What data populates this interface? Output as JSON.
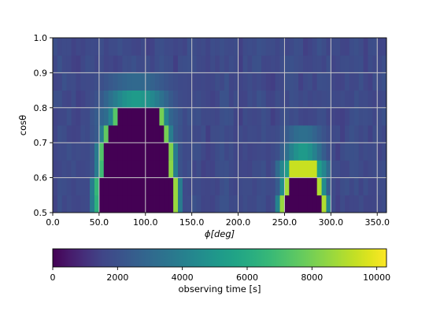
{
  "chart_data": {
    "type": "heatmap",
    "title": "",
    "xlabel": "ϕ[deg]",
    "ylabel": "cosθ",
    "xlim": [
      0,
      360
    ],
    "ylim": [
      0.5,
      1.0
    ],
    "x_ticks": [
      0,
      50,
      100,
      150,
      200,
      250,
      300,
      350
    ],
    "x_tick_labels": [
      "0.0",
      "50.0",
      "100.0",
      "150.0",
      "200.0",
      "250.0",
      "300.0",
      "350.0"
    ],
    "y_ticks": [
      0.5,
      0.6,
      0.7,
      0.8,
      0.9,
      1.0
    ],
    "y_tick_labels": [
      "0.5",
      "0.6",
      "0.7",
      "0.8",
      "0.9",
      "1.0"
    ],
    "grid": true,
    "cells": {
      "phi_step_deg": 5,
      "cos_theta_step": 0.05,
      "base_value_s": 1700,
      "lobes": [
        {
          "phi_range_deg": [
            45,
            135
          ],
          "rows": [
            {
              "cos_theta": [
                0.5,
                0.55
              ],
              "zero_phi_deg": [
                50,
                130
              ],
              "edge_values_s": [
                6300,
                8600
              ],
              "near_edge_s": 3800
            },
            {
              "cos_theta": [
                0.55,
                0.6
              ],
              "zero_phi_deg": [
                50,
                130
              ],
              "edge_values_s": [
                6600,
                8600
              ],
              "near_edge_s": 3900
            },
            {
              "cos_theta": [
                0.6,
                0.65
              ],
              "zero_phi_deg": [
                55,
                125
              ],
              "edge_values_s": [
                6800,
                8400
              ],
              "near_edge_s": 3900
            },
            {
              "cos_theta": [
                0.65,
                0.7
              ],
              "zero_phi_deg": [
                55,
                125
              ],
              "edge_values_s": [
                7300,
                8200
              ],
              "near_edge_s": 3800
            },
            {
              "cos_theta": [
                0.7,
                0.75
              ],
              "zero_phi_deg": [
                60,
                120
              ],
              "edge_values_s": [
                7600,
                8000
              ],
              "near_edge_s": 3900
            },
            {
              "cos_theta": [
                0.75,
                0.8
              ],
              "zero_phi_deg": [
                70,
                115
              ],
              "edge_values_s": [
                7400,
                8000
              ],
              "near_edge_s": 4200
            },
            {
              "cos_theta": [
                0.8,
                0.85
              ],
              "peak_value_s": 5200
            },
            {
              "cos_theta": [
                0.85,
                0.9
              ],
              "peak_value_s": 3000
            }
          ]
        },
        {
          "phi_range_deg": [
            245,
            295
          ],
          "rows": [
            {
              "cos_theta": [
                0.5,
                0.55
              ],
              "zero_phi_deg": [
                250,
                290
              ],
              "edge_values_s": [
                8600,
                9000
              ],
              "near_edge_s": 4200
            },
            {
              "cos_theta": [
                0.55,
                0.6
              ],
              "zero_phi_deg": [
                255,
                285
              ],
              "edge_values_s": [
                8800,
                9000
              ],
              "near_edge_s": 4600
            },
            {
              "cos_theta": [
                0.6,
                0.65
              ],
              "plateau_value_s": 9400
            },
            {
              "cos_theta": [
                0.65,
                0.7
              ],
              "peak_value_s": 5200
            },
            {
              "cos_theta": [
                0.7,
                0.75
              ],
              "peak_value_s": 3300
            }
          ]
        }
      ]
    },
    "colorbar": {
      "colormap": "viridis",
      "vmin": 0,
      "vmax": 10300,
      "ticks": [
        0,
        2000,
        4000,
        6000,
        8000,
        10000
      ],
      "tick_labels": [
        "0",
        "2000",
        "4000",
        "6000",
        "8000",
        "10000"
      ],
      "label": "observing time [s]"
    },
    "colors": {
      "grid": "#c8c8c8",
      "viridis_low": "#440154",
      "viridis_mid": "#21918c",
      "viridis_high": "#fde725"
    }
  }
}
